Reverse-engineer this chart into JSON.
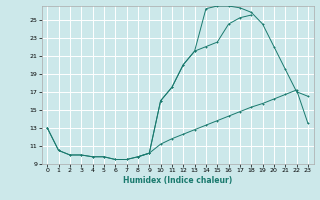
{
  "xlabel": "Humidex (Indice chaleur)",
  "bg_color": "#cce8ea",
  "grid_color": "#ffffff",
  "line_color": "#1a7a6e",
  "xlim": [
    -0.5,
    23.5
  ],
  "ylim": [
    9,
    26.5
  ],
  "xticks": [
    0,
    1,
    2,
    3,
    4,
    5,
    6,
    7,
    8,
    9,
    10,
    11,
    12,
    13,
    14,
    15,
    16,
    17,
    18,
    19,
    20,
    21,
    22,
    23
  ],
  "yticks": [
    9,
    11,
    13,
    15,
    17,
    19,
    21,
    23,
    25
  ],
  "series1_x": [
    0,
    1,
    2,
    3,
    4,
    5,
    6,
    7,
    8,
    9,
    10,
    11,
    12,
    13,
    14,
    15,
    16,
    17,
    18
  ],
  "series1_y": [
    13,
    10.5,
    10,
    10,
    9.8,
    9.8,
    9.5,
    9.5,
    9.8,
    10.2,
    16,
    17.5,
    20,
    21.5,
    22,
    22.5,
    24.5,
    25.2,
    25.5
  ],
  "series2_x": [
    0,
    1,
    2,
    3,
    4,
    5,
    6,
    7,
    8,
    9,
    10,
    11,
    12,
    13,
    14,
    15,
    16,
    17,
    18,
    19,
    20,
    21,
    22,
    23
  ],
  "series2_y": [
    13,
    10.5,
    10,
    10,
    9.8,
    9.8,
    9.5,
    9.5,
    9.8,
    10.2,
    11.2,
    11.8,
    12.3,
    12.8,
    13.3,
    13.8,
    14.3,
    14.8,
    15.3,
    15.7,
    16.2,
    16.7,
    17.2,
    13.5
  ],
  "series3_x": [
    8,
    9,
    10,
    11,
    12,
    13,
    14,
    15,
    16,
    17,
    18,
    19,
    20,
    21,
    22,
    23
  ],
  "series3_y": [
    9.8,
    10.2,
    16,
    17.5,
    20,
    21.5,
    26.2,
    26.5,
    26.5,
    26.3,
    25.8,
    24.5,
    22,
    19.5,
    17,
    16.5
  ]
}
